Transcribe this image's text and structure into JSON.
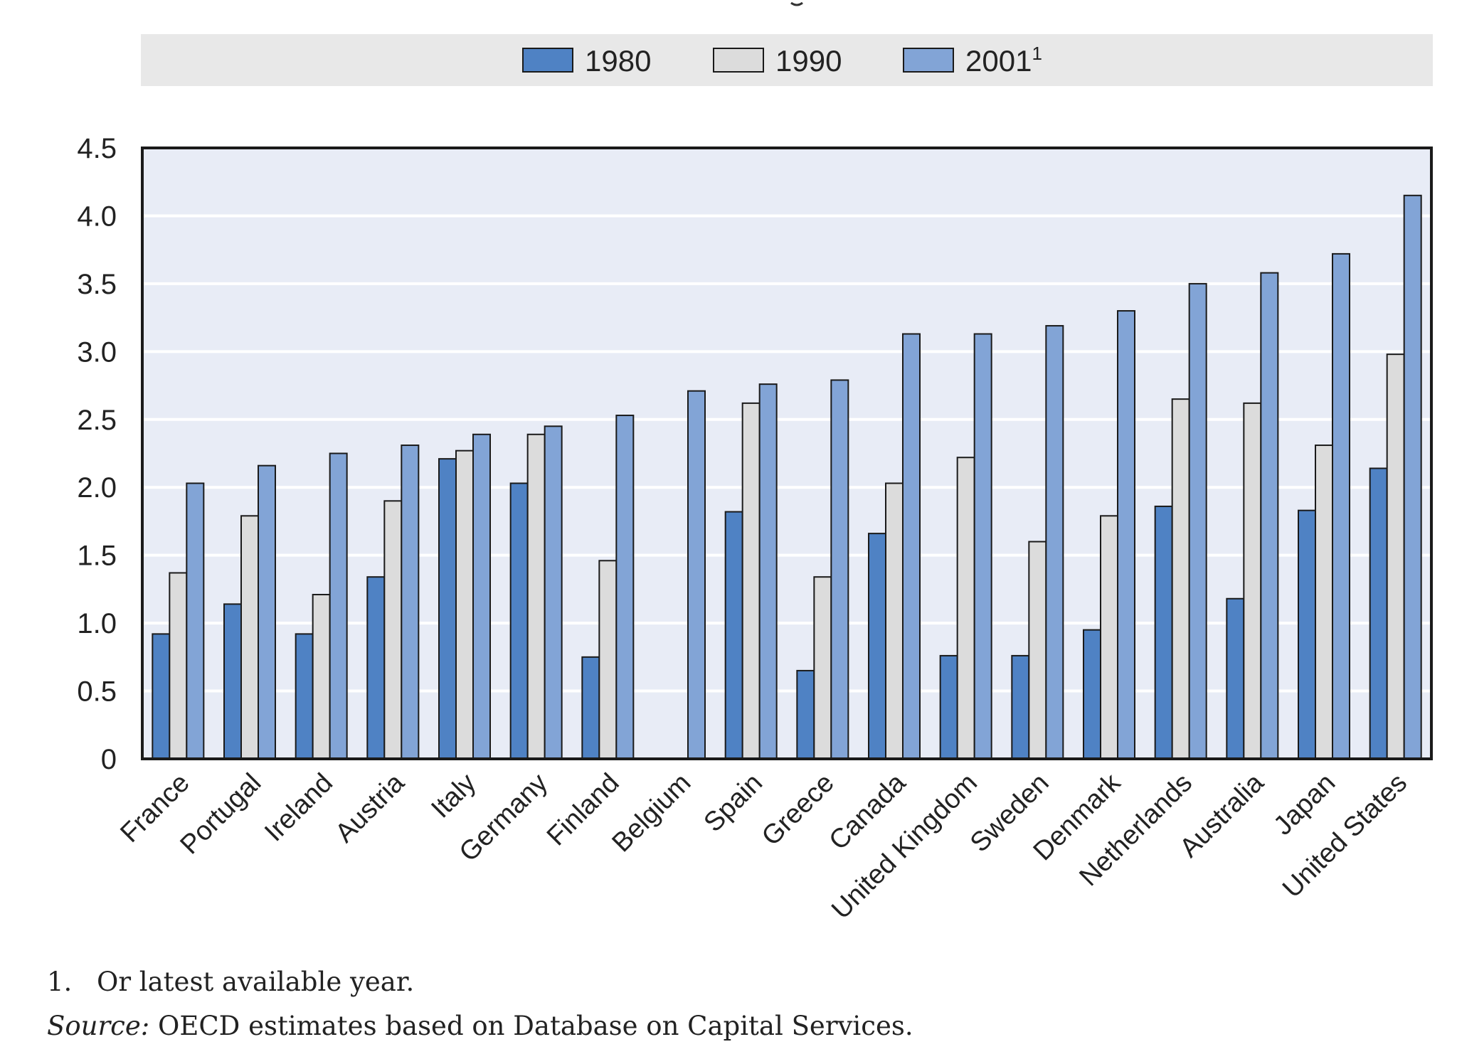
{
  "chart_data": {
    "type": "bar",
    "categories": [
      "France",
      "Portugal",
      "Ireland",
      "Austria",
      "Italy",
      "Germany",
      "Finland",
      "Belgium",
      "Spain",
      "Greece",
      "Canada",
      "United Kingdom",
      "Sweden",
      "Denmark",
      "Netherlands",
      "Australia",
      "Japan",
      "United States"
    ],
    "series": [
      {
        "name": "1980",
        "values": [
          0.92,
          1.14,
          0.92,
          1.34,
          2.21,
          2.03,
          0.75,
          null,
          1.82,
          0.65,
          1.66,
          0.76,
          0.76,
          0.95,
          1.86,
          1.18,
          1.83,
          2.14
        ]
      },
      {
        "name": "1990",
        "values": [
          1.37,
          1.79,
          1.21,
          1.9,
          2.27,
          2.39,
          1.46,
          null,
          2.62,
          1.34,
          2.03,
          2.22,
          1.6,
          1.79,
          2.65,
          2.62,
          2.31,
          2.98
        ]
      },
      {
        "name": "2001",
        "name_sup": "1",
        "values": [
          2.03,
          2.16,
          2.25,
          2.31,
          2.39,
          2.45,
          2.53,
          2.71,
          2.76,
          2.79,
          3.13,
          3.13,
          3.19,
          3.3,
          3.5,
          3.58,
          3.72,
          4.15
        ]
      }
    ],
    "yticks": [
      "0",
      "0.5",
      "1.0",
      "1.5",
      "2.0",
      "2.5",
      "3.0",
      "3.5",
      "4.0",
      "4.5"
    ],
    "ylim": [
      0,
      4.5
    ],
    "grid": true,
    "legend_position": "top"
  },
  "colors": {
    "series": [
      "#4f82c4",
      "#dcdcdc",
      "#82a4d6"
    ],
    "plot_bg": "#e8ecf6",
    "legend_bg": "#e8e8e8",
    "grid": "#ffffff",
    "bar_edge": "#1a1a1a"
  },
  "notes": {
    "note_number": "1.",
    "note_text": "Or latest available year.",
    "source_label": "Source:",
    "source_text": " OECD estimates based on Database on Capital Services."
  }
}
